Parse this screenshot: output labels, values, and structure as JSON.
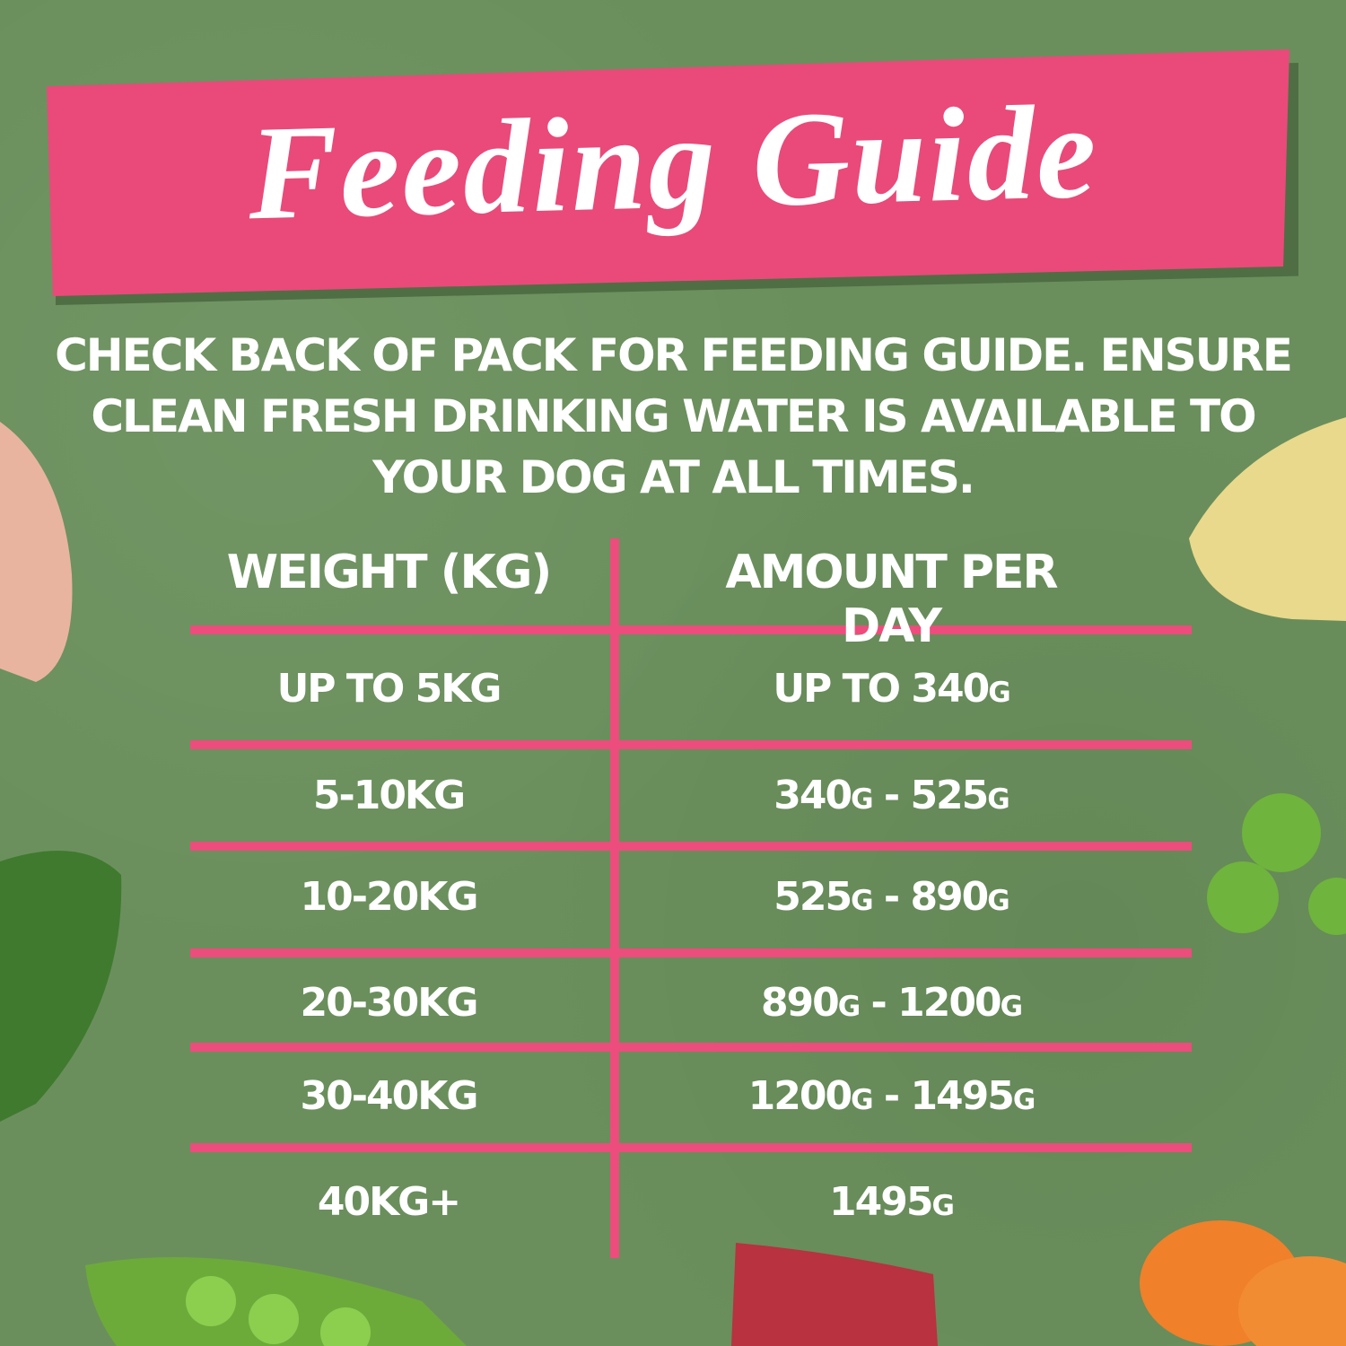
{
  "title": "Feeding Guide",
  "intro_lines": [
    "CHECK BACK OF PACK FOR FEEDING GUIDE. ENSURE",
    "CLEAN FRESH DRINKING WATER IS AVAILABLE TO",
    "YOUR DOG AT ALL TIMES."
  ],
  "table": {
    "headers": [
      "WEIGHT (KG)",
      "AMOUNT PER DAY"
    ],
    "rows": [
      [
        "UP TO 5KG",
        "UP TO 340g"
      ],
      [
        "5-10KG",
        "340g - 525g"
      ],
      [
        "10-20KG",
        "525g - 890g"
      ],
      [
        "20-30KG",
        "890g - 1200g"
      ],
      [
        "30-40KG",
        "1200g - 1495g"
      ],
      [
        "40KG+",
        "1495g"
      ]
    ]
  },
  "colors": {
    "background": "#6a8f5c",
    "accent": "#ec4d7c",
    "text": "#ffffff"
  }
}
